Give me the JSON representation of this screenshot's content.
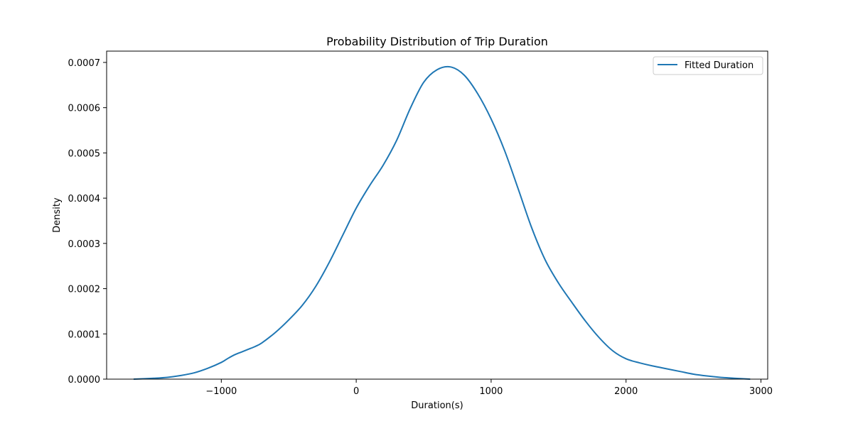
{
  "chart_data": {
    "type": "line",
    "title": "Probability Distribution of Trip Duration",
    "xlabel": "Duration(s)",
    "ylabel": "Density",
    "xlim": [
      -1850,
      3050
    ],
    "ylim": [
      0,
      0.000725
    ],
    "x_ticks": [
      -1000,
      0,
      1000,
      2000,
      3000
    ],
    "x_tick_labels": [
      "−1000",
      "0",
      "1000",
      "2000",
      "3000"
    ],
    "y_ticks": [
      0,
      0.0001,
      0.0002,
      0.0003,
      0.0004,
      0.0005,
      0.0006,
      0.0007
    ],
    "y_tick_labels": [
      "0.0000",
      "0.0001",
      "0.0002",
      "0.0003",
      "0.0004",
      "0.0005",
      "0.0006",
      "0.0007"
    ],
    "grid": false,
    "legend_position": "top-right",
    "series": [
      {
        "name": "Fitted Duration",
        "color": "#1f77b4",
        "x": [
          -1650,
          -1500,
          -1400,
          -1300,
          -1200,
          -1100,
          -1000,
          -950,
          -900,
          -850,
          -800,
          -750,
          -700,
          -600,
          -500,
          -400,
          -300,
          -200,
          -100,
          0,
          100,
          200,
          300,
          400,
          500,
          600,
          700,
          800,
          900,
          1000,
          1100,
          1200,
          1300,
          1400,
          1500,
          1600,
          1700,
          1800,
          1900,
          2000,
          2100,
          2200,
          2300,
          2400,
          2500,
          2600,
          2700,
          2800,
          2920
        ],
        "y": [
          0.0,
          2e-06,
          4e-06,
          8e-06,
          1.4e-05,
          2.4e-05,
          3.7e-05,
          4.6e-05,
          5.4e-05,
          6e-05,
          6.6e-05,
          7.2e-05,
          8e-05,
          0.000103,
          0.000131,
          0.000163,
          0.000205,
          0.000258,
          0.000318,
          0.000378,
          0.000428,
          0.000473,
          0.000528,
          0.000598,
          0.000656,
          0.000684,
          0.00069,
          0.000672,
          0.000631,
          0.000575,
          0.000505,
          0.000421,
          0.000335,
          0.000264,
          0.000212,
          0.000169,
          0.000128,
          9.2e-05,
          6.3e-05,
          4.5e-05,
          3.6e-05,
          2.9e-05,
          2.3e-05,
          1.7e-05,
          1.1e-05,
          7e-06,
          4e-06,
          2e-06,
          0.0
        ]
      }
    ]
  }
}
